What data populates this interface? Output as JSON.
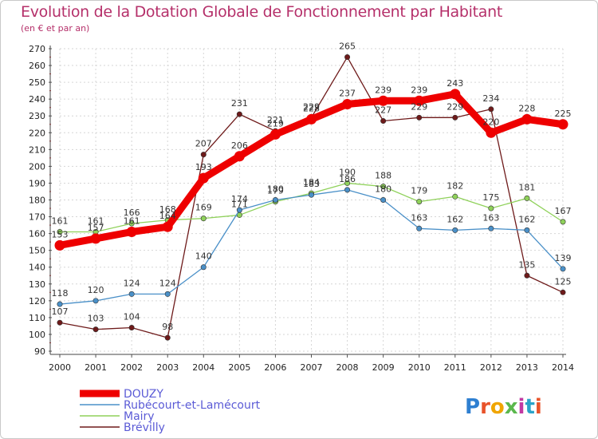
{
  "title": "Evolution de la Dotation Globale de Fonctionnement par Habitant",
  "subtitle": "(en € et par an)",
  "brand": "Proxiti",
  "chart_data": {
    "type": "line",
    "x": [
      "2000",
      "2001",
      "2002",
      "2003",
      "2004",
      "2005",
      "2006",
      "2007",
      "2008",
      "2009",
      "2010",
      "2011",
      "2012",
      "2013",
      "2014"
    ],
    "ylim": [
      90,
      270
    ],
    "yticks": [
      90,
      100,
      110,
      120,
      130,
      140,
      150,
      160,
      170,
      180,
      190,
      200,
      210,
      220,
      230,
      240,
      250,
      260,
      270
    ],
    "grid": true,
    "legend_position": "bottom-left",
    "series": [
      {
        "name": "Brévilly",
        "color": "#6e1a1a",
        "values": [
          107,
          103,
          104,
          98,
          207,
          231,
          221,
          229,
          265,
          227,
          229,
          229,
          234,
          135,
          125
        ]
      },
      {
        "name": "Mairy",
        "color": "#8fd15a",
        "values": [
          161,
          161,
          166,
          168,
          169,
          171,
          179,
          184,
          190,
          188,
          179,
          182,
          175,
          181,
          167
        ]
      },
      {
        "name": "Rubécourt-et-Lamécourt",
        "color": "#4a90c8",
        "values": [
          118,
          120,
          124,
          124,
          140,
          174,
          180,
          183,
          186,
          180,
          163,
          162,
          163,
          162,
          139
        ]
      },
      {
        "name": "DOUZY",
        "color": "#ee0000",
        "values": [
          153,
          157,
          161,
          164,
          193,
          206,
          219,
          228,
          237,
          239,
          239,
          243,
          220,
          228,
          225
        ]
      }
    ],
    "legend_order": [
      "DOUZY",
      "Rubécourt-et-Lamécourt",
      "Mairy",
      "Brévilly"
    ]
  }
}
